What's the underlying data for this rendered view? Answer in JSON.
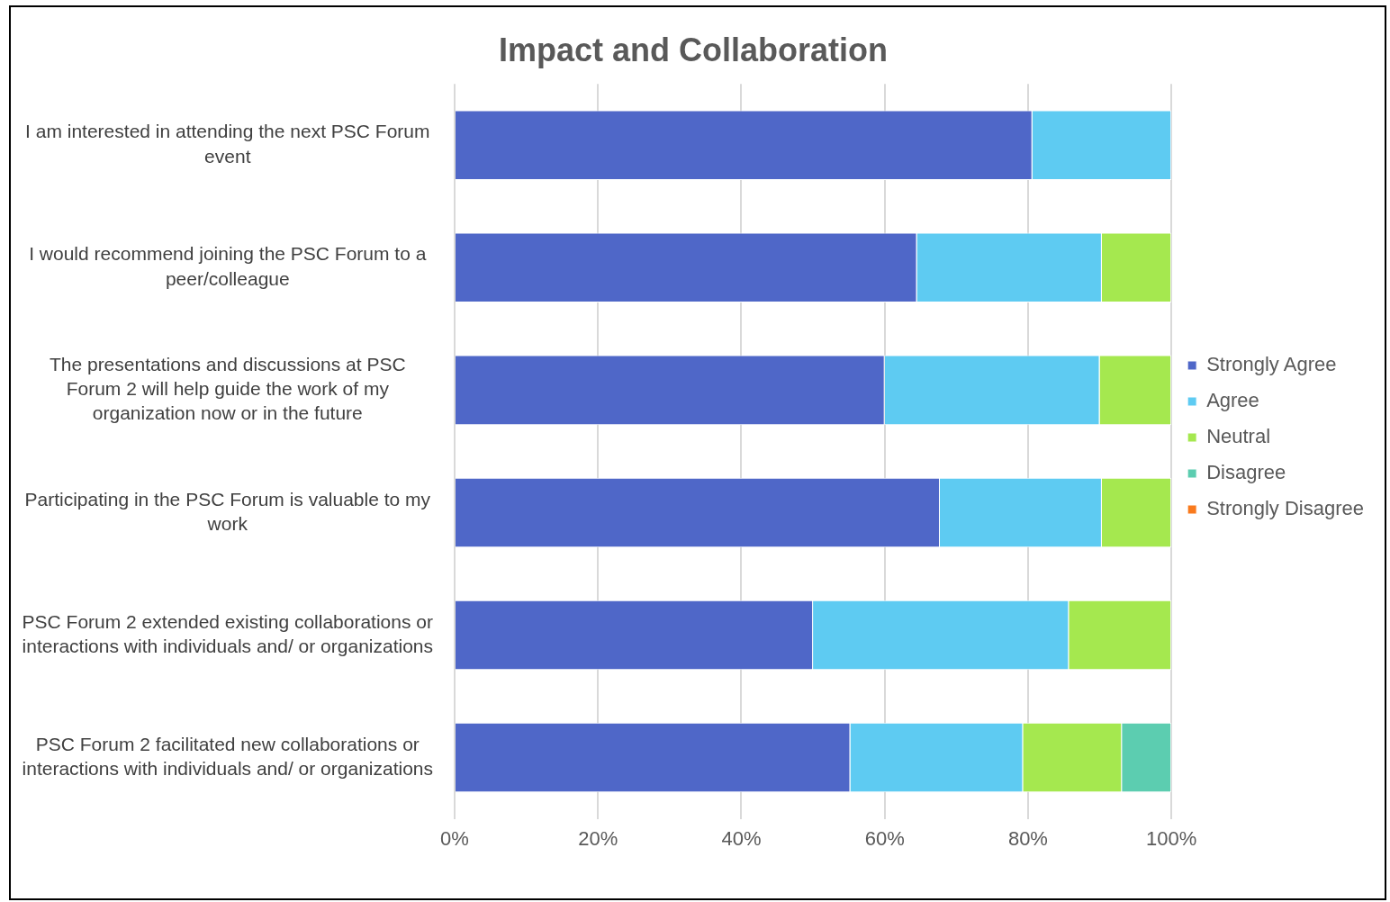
{
  "chart_data": {
    "type": "bar",
    "orientation": "horizontal",
    "stacked": true,
    "title": "Impact and Collaboration",
    "categories": [
      "I am interested in attending the next PSC Forum event",
      "I would recommend joining the PSC Forum to a peer/colleague",
      "The presentations and discussions at PSC Forum 2 will help guide the work of my organization now or in the future",
      "Participating in the PSC Forum is valuable to my work",
      "PSC Forum 2 extended existing collaborations or interactions with individuals and/ or organizations",
      "PSC Forum 2 facilitated new collaborations or interactions with individuals and/ or organizations"
    ],
    "series": [
      {
        "name": "Strongly Agree",
        "color": "#4f67c8",
        "values": [
          80.6,
          64.5,
          60,
          67.7,
          50,
          55.2
        ]
      },
      {
        "name": "Agree",
        "color": "#5ecbf2",
        "values": [
          19.4,
          25.8,
          30,
          22.6,
          35.7,
          24.1
        ]
      },
      {
        "name": "Neutral",
        "color": "#a5e84f",
        "values": [
          0,
          9.7,
          10,
          9.7,
          14.3,
          13.8
        ]
      },
      {
        "name": "Disagree",
        "color": "#5ccdb0",
        "values": [
          0,
          0,
          0,
          0,
          0,
          6.9
        ]
      },
      {
        "name": "Strongly Disagree",
        "color": "#f97a1d",
        "values": [
          0,
          0,
          0,
          0,
          0,
          0
        ]
      }
    ],
    "xlim": [
      0,
      100
    ],
    "xticks": [
      {
        "value": 0,
        "label": "0%"
      },
      {
        "value": 20,
        "label": "20%"
      },
      {
        "value": 40,
        "label": "40%"
      },
      {
        "value": 60,
        "label": "60%"
      },
      {
        "value": 80,
        "label": "80%"
      },
      {
        "value": 100,
        "label": "100%"
      }
    ],
    "grid": "x",
    "legend": "right"
  }
}
